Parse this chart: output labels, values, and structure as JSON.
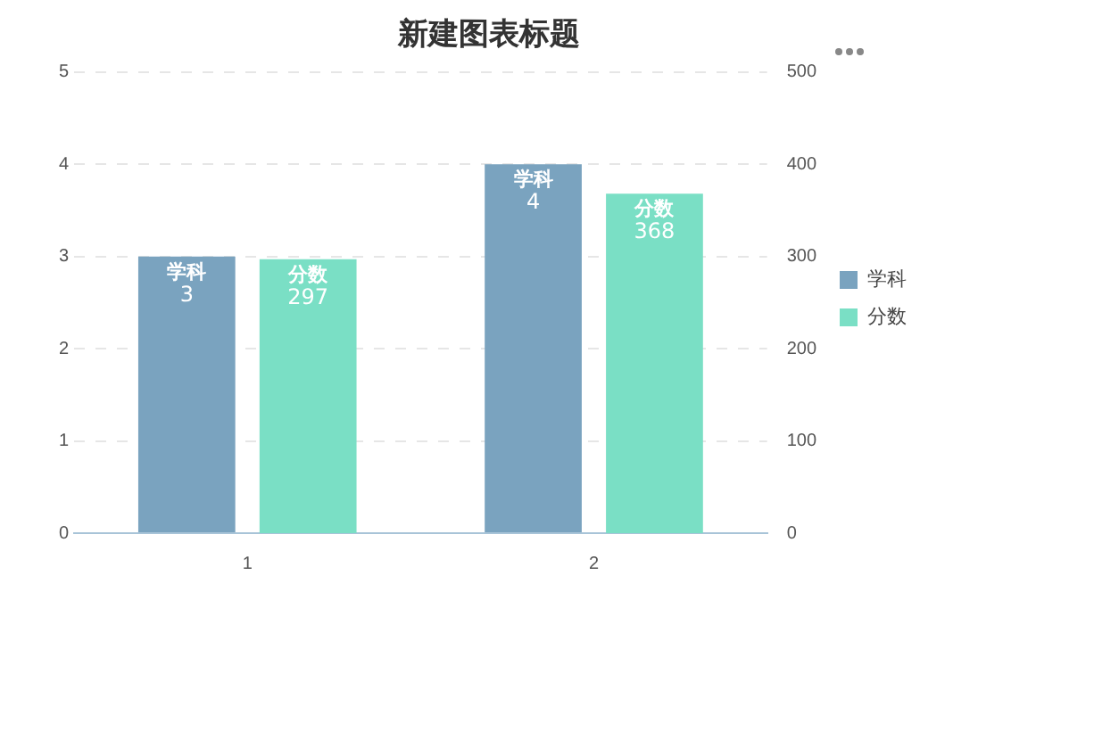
{
  "chart_data": {
    "type": "bar",
    "title": "新建图表标题",
    "categories": [
      "1",
      "2"
    ],
    "series": [
      {
        "name": "学科",
        "color": "#7aa3bf",
        "values": [
          3,
          4
        ]
      },
      {
        "name": "分数",
        "color": "#7adfc5",
        "values": [
          297,
          368
        ],
        "axis": "y2"
      }
    ],
    "ylim": [
      0,
      5
    ],
    "yticks": [
      0,
      1,
      2,
      3,
      4,
      5
    ],
    "y2lim": [
      0,
      500
    ],
    "y2ticks": [
      0,
      100,
      200,
      300,
      400,
      500
    ],
    "grid": "y",
    "legend": "right",
    "data_labels": true
  }
}
